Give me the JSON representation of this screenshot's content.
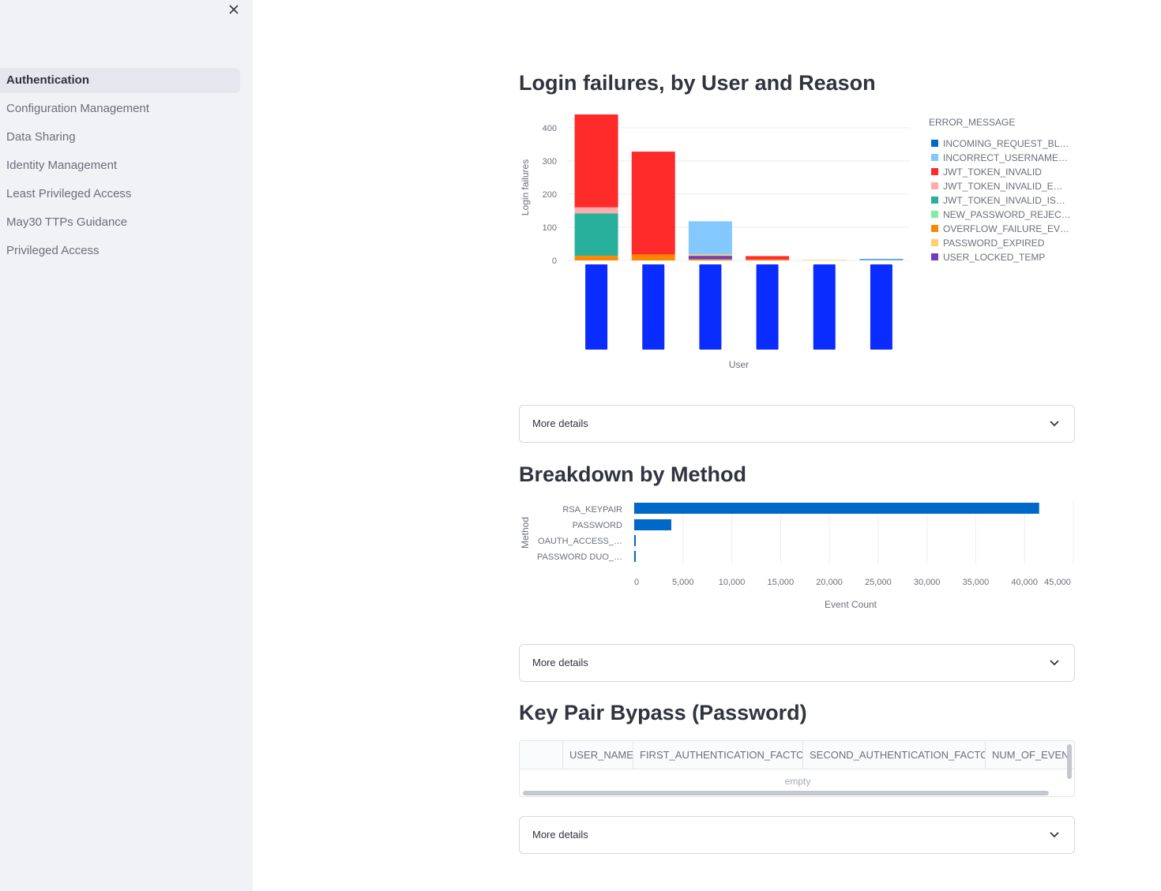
{
  "sidebar": {
    "close_label": "×",
    "items": [
      {
        "label": "Authentication",
        "active": true
      },
      {
        "label": "Configuration Management",
        "active": false
      },
      {
        "label": "Data Sharing",
        "active": false
      },
      {
        "label": "Identity Management",
        "active": false
      },
      {
        "label": "Least Privileged Access",
        "active": false
      },
      {
        "label": "May30 TTPs Guidance",
        "active": false
      },
      {
        "label": "Privileged Access",
        "active": false
      }
    ]
  },
  "sections": {
    "login_failures": {
      "title": "Login failures, by User and Reason",
      "expander": "More details"
    },
    "method": {
      "title": "Breakdown by Method",
      "expander": "More details"
    },
    "keypair": {
      "title": "Key Pair Bypass (Password)",
      "expander": "More details"
    }
  },
  "table": {
    "columns": [
      "",
      "USER_NAME",
      "FIRST_AUTHENTICATION_FACTOR",
      "SECOND_AUTHENTICATION_FACTOR",
      "NUM_OF_EVENTS"
    ],
    "empty_text": "empty"
  },
  "chart_data": [
    {
      "type": "bar",
      "stacked": true,
      "title": "Login failures, by User and Reason",
      "xlabel": "User",
      "ylabel": "Login failures",
      "ylim": [
        0,
        440
      ],
      "yticks": [
        0,
        100,
        200,
        300,
        400
      ],
      "legend_title": "ERROR_MESSAGE",
      "legend_placement": "right",
      "categories": [
        "",
        "",
        "",
        "",
        "",
        ""
      ],
      "series": [
        {
          "name": "INCOMING_REQUEST_BL…",
          "color": "#0068c9",
          "values": [
            0,
            0,
            0,
            0,
            0,
            2
          ]
        },
        {
          "name": "INCORRECT_USERNAME…",
          "color": "#83c9ff",
          "values": [
            0,
            0,
            100,
            0,
            0,
            2
          ]
        },
        {
          "name": "JWT_TOKEN_INVALID",
          "color": "#ff2b2b",
          "values": [
            280,
            310,
            0,
            10,
            0,
            0
          ]
        },
        {
          "name": "JWT_TOKEN_INVALID_E…",
          "color": "#ffabab",
          "values": [
            18,
            0,
            0,
            0,
            0,
            0
          ]
        },
        {
          "name": "JWT_TOKEN_INVALID_IS…",
          "color": "#29b09d",
          "values": [
            128,
            0,
            0,
            0,
            0,
            0
          ]
        },
        {
          "name": "NEW_PASSWORD_REJEC…",
          "color": "#7defa1",
          "values": [
            0,
            0,
            0,
            0,
            0,
            0
          ]
        },
        {
          "name": "OVERFLOW_FAILURE_EV…",
          "color": "#ff8700",
          "values": [
            14,
            18,
            4,
            3,
            0,
            0
          ]
        },
        {
          "name": "PASSWORD_EXPIRED",
          "color": "#ffd16a",
          "values": [
            0,
            0,
            4,
            0,
            2,
            0
          ]
        },
        {
          "name": "USER_LOCKED_TEMP",
          "color": "#6d3fc0",
          "values": [
            0,
            0,
            10,
            0,
            0,
            0
          ]
        }
      ],
      "redacted_label_color": "#0a2cff"
    },
    {
      "type": "bar",
      "orientation": "horizontal",
      "title": "Breakdown by Method",
      "xlabel": "Event Count",
      "ylabel": "Method",
      "xlim": [
        0,
        45000
      ],
      "xticks": [
        0,
        5000,
        10000,
        15000,
        20000,
        25000,
        30000,
        35000,
        40000,
        45000
      ],
      "xtick_labels": [
        "0",
        "5,000",
        "10,000",
        "15,000",
        "20,000",
        "25,000",
        "30,000",
        "35,000",
        "40,000",
        "45,000"
      ],
      "categories": [
        "RSA_KEYPAIR",
        "PASSWORD",
        "OAUTH_ACCESS_…",
        "PASSWORD DUO_…"
      ],
      "values": [
        41500,
        3800,
        150,
        120
      ],
      "color": "#0068c9"
    }
  ]
}
